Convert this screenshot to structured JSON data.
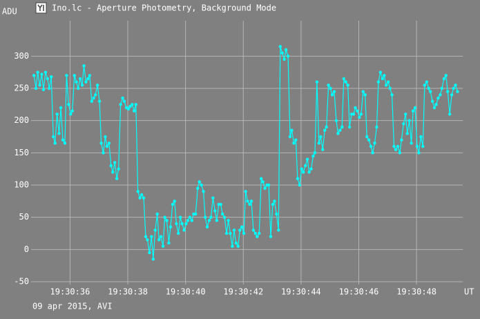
{
  "chart_data": {
    "type": "line",
    "title": "Ino.lc - Aperture Photometry, Background Mode",
    "y_label": "ADU",
    "x_label": "UT",
    "footer": "09 apr 2015, AVI",
    "color": "#00ffff",
    "markers": true,
    "grid": true,
    "xlim": [
      34.65,
      49.6
    ],
    "ylim": [
      -50,
      355
    ],
    "xticks": [
      {
        "value": 36,
        "label": "19:30:36"
      },
      {
        "value": 38,
        "label": "19:30:38"
      },
      {
        "value": 40,
        "label": "19:30:40"
      },
      {
        "value": 42,
        "label": "19:30:42"
      },
      {
        "value": 44,
        "label": "19:30:44"
      },
      {
        "value": 46,
        "label": "19:30:46"
      },
      {
        "value": 48,
        "label": "19:30:48"
      }
    ],
    "yticks": [
      -50,
      0,
      50,
      100,
      150,
      200,
      250,
      300
    ],
    "x": [
      34.75,
      34.82,
      34.88,
      34.95,
      35.02,
      35.08,
      35.15,
      35.22,
      35.28,
      35.35,
      35.42,
      35.48,
      35.55,
      35.62,
      35.68,
      35.75,
      35.82,
      35.88,
      35.95,
      36.02,
      36.08,
      36.15,
      36.22,
      36.28,
      36.35,
      36.42,
      36.48,
      36.55,
      36.62,
      36.68,
      36.75,
      36.82,
      36.88,
      36.95,
      37.02,
      37.08,
      37.15,
      37.22,
      37.28,
      37.35,
      37.42,
      37.48,
      37.55,
      37.62,
      37.68,
      37.75,
      37.82,
      37.88,
      37.95,
      38.02,
      38.08,
      38.15,
      38.22,
      38.28,
      38.35,
      38.42,
      38.48,
      38.55,
      38.62,
      38.68,
      38.75,
      38.82,
      38.88,
      38.95,
      39.02,
      39.08,
      39.15,
      39.22,
      39.28,
      39.35,
      39.42,
      39.48,
      39.55,
      39.62,
      39.68,
      39.75,
      39.82,
      39.88,
      39.95,
      40.02,
      40.08,
      40.15,
      40.22,
      40.28,
      40.35,
      40.42,
      40.48,
      40.55,
      40.62,
      40.68,
      40.75,
      40.82,
      40.88,
      40.95,
      41.02,
      41.08,
      41.15,
      41.22,
      41.28,
      41.35,
      41.42,
      41.48,
      41.55,
      41.62,
      41.68,
      41.75,
      41.82,
      41.88,
      41.95,
      42.02,
      42.08,
      42.15,
      42.22,
      42.28,
      42.35,
      42.42,
      42.48,
      42.55,
      42.62,
      42.68,
      42.75,
      42.82,
      42.88,
      42.95,
      43.02,
      43.08,
      43.15,
      43.22,
      43.28,
      43.35,
      43.42,
      43.48,
      43.55,
      43.62,
      43.68,
      43.75,
      43.82,
      43.88,
      43.95,
      44.02,
      44.08,
      44.15,
      44.22,
      44.28,
      44.35,
      44.42,
      44.48,
      44.55,
      44.62,
      44.68,
      44.75,
      44.82,
      44.88,
      44.95,
      45.02,
      45.08,
      45.15,
      45.22,
      45.28,
      45.35,
      45.42,
      45.48,
      45.55,
      45.62,
      45.68,
      45.75,
      45.82,
      45.88,
      45.95,
      46.02,
      46.08,
      46.15,
      46.22,
      46.28,
      46.35,
      46.42,
      46.48,
      46.55,
      46.62,
      46.68,
      46.75,
      46.82,
      46.88,
      46.95,
      47.02,
      47.08,
      47.15,
      47.22,
      47.28,
      47.35,
      47.42,
      47.48,
      47.55,
      47.62,
      47.68,
      47.75,
      47.82,
      47.88,
      47.95,
      48.02,
      48.08,
      48.15,
      48.22,
      48.28,
      48.35,
      48.42,
      48.48,
      48.55,
      48.62,
      48.68,
      48.75,
      48.82,
      48.88,
      48.95,
      49.02,
      49.08,
      49.15,
      49.22,
      49.28,
      49.35,
      49.42
    ],
    "values": [
      270,
      250,
      275,
      255,
      272,
      248,
      275,
      265,
      250,
      268,
      175,
      165,
      210,
      180,
      220,
      170,
      165,
      270,
      225,
      210,
      215,
      270,
      260,
      250,
      265,
      255,
      285,
      260,
      265,
      270,
      230,
      235,
      240,
      255,
      230,
      165,
      150,
      175,
      160,
      165,
      130,
      120,
      135,
      110,
      125,
      225,
      235,
      230,
      220,
      218,
      222,
      225,
      215,
      225,
      90,
      80,
      85,
      80,
      20,
      15,
      -5,
      20,
      -15,
      30,
      55,
      15,
      20,
      5,
      50,
      45,
      10,
      35,
      70,
      75,
      40,
      25,
      50,
      40,
      30,
      40,
      45,
      50,
      45,
      55,
      55,
      95,
      105,
      100,
      90,
      50,
      35,
      45,
      50,
      80,
      60,
      45,
      70,
      70,
      55,
      50,
      25,
      45,
      25,
      5,
      30,
      10,
      5,
      30,
      35,
      25,
      90,
      75,
      70,
      75,
      30,
      25,
      20,
      25,
      110,
      105,
      95,
      100,
      100,
      20,
      70,
      75,
      55,
      30,
      315,
      305,
      295,
      310,
      300,
      175,
      185,
      165,
      170,
      110,
      100,
      125,
      120,
      130,
      140,
      120,
      125,
      145,
      150,
      260,
      165,
      175,
      155,
      185,
      190,
      255,
      250,
      240,
      245,
      200,
      180,
      185,
      190,
      265,
      260,
      255,
      190,
      210,
      210,
      220,
      215,
      205,
      210,
      245,
      240,
      175,
      170,
      160,
      150,
      165,
      190,
      260,
      275,
      265,
      270,
      255,
      260,
      250,
      240,
      160,
      155,
      160,
      150,
      170,
      195,
      210,
      180,
      200,
      165,
      215,
      220,
      160,
      150,
      175,
      160,
      255,
      260,
      250,
      245,
      230,
      220,
      225,
      235,
      240,
      250,
      265,
      270,
      245,
      210,
      240,
      250,
      255,
      245
    ]
  }
}
